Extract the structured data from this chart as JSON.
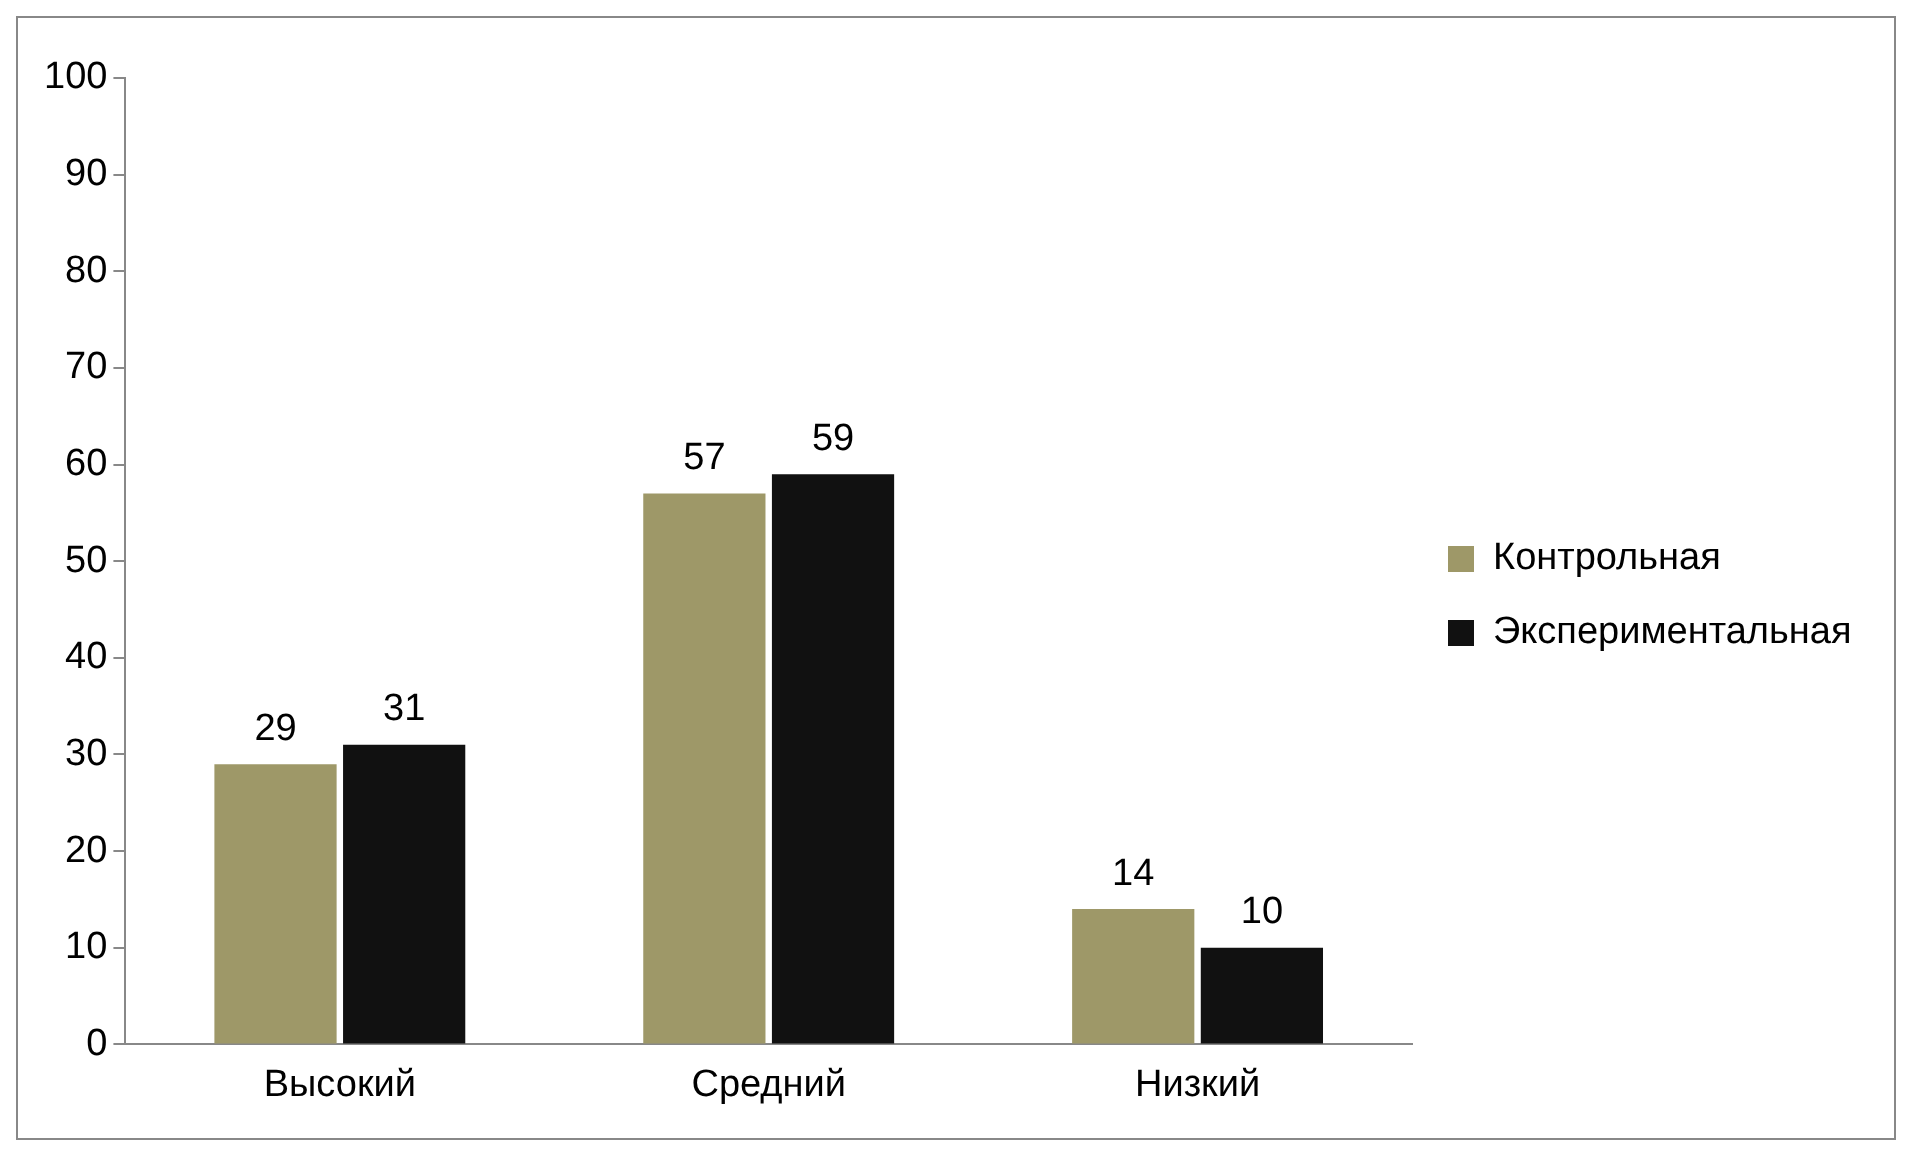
{
  "chart_data": {
    "type": "bar",
    "categories": [
      "Высокий",
      "Средний",
      "Низкий"
    ],
    "series": [
      {
        "name": "Контрольная",
        "color": "#9e9868",
        "values": [
          29,
          57,
          14
        ]
      },
      {
        "name": "Экспериментальная",
        "color": "#111111",
        "values": [
          31,
          59,
          10
        ]
      }
    ],
    "ylim": [
      0,
      100
    ],
    "yticks": [
      0,
      10,
      20,
      30,
      40,
      50,
      60,
      70,
      80,
      90,
      100
    ],
    "grid": false,
    "legend": "right",
    "data_labels": true
  }
}
